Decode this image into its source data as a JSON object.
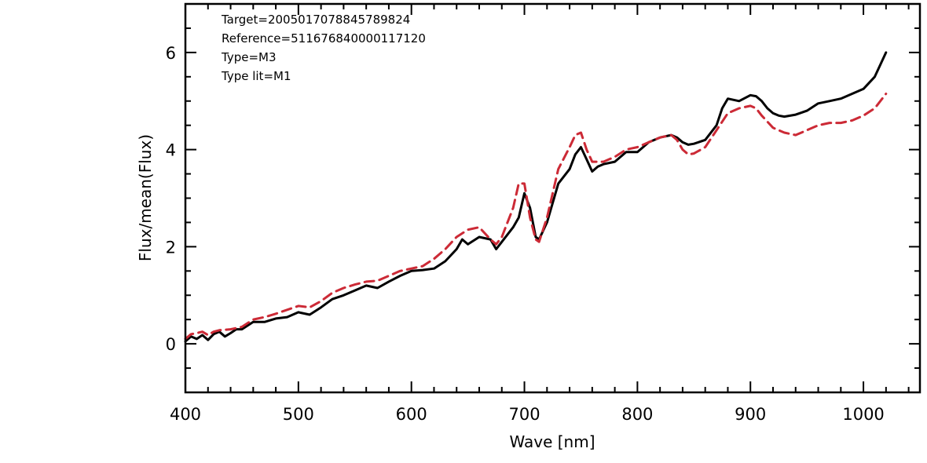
{
  "chart_data": {
    "type": "line",
    "xlabel": "Wave [nm]",
    "ylabel": "Flux/mean(Flux)",
    "xlim": [
      400,
      1050
    ],
    "ylim": [
      -1,
      7
    ],
    "xticks": [
      400,
      500,
      600,
      700,
      800,
      900,
      1000
    ],
    "yticks": [
      0,
      2,
      4,
      6
    ],
    "grid": false,
    "annotations": [
      "Target=2005017078845789824",
      "Reference=511676840000117120",
      "Type=M3",
      "Type lit=M1"
    ],
    "series": [
      {
        "color": "#000000",
        "style": "solid",
        "x": [
          400,
          405,
          410,
          415,
          420,
          425,
          430,
          435,
          440,
          445,
          450,
          460,
          470,
          480,
          490,
          500,
          510,
          520,
          530,
          540,
          550,
          560,
          570,
          580,
          590,
          600,
          610,
          620,
          630,
          640,
          645,
          650,
          660,
          670,
          675,
          680,
          690,
          695,
          700,
          705,
          710,
          713,
          720,
          730,
          740,
          745,
          750,
          755,
          760,
          765,
          770,
          780,
          790,
          800,
          810,
          820,
          830,
          835,
          840,
          845,
          850,
          860,
          870,
          875,
          880,
          890,
          900,
          905,
          910,
          915,
          920,
          925,
          930,
          940,
          950,
          960,
          970,
          980,
          990,
          1000,
          1010,
          1015,
          1020
        ],
        "y": [
          0.05,
          0.15,
          0.1,
          0.18,
          0.08,
          0.2,
          0.25,
          0.15,
          0.22,
          0.3,
          0.3,
          0.45,
          0.45,
          0.52,
          0.55,
          0.65,
          0.6,
          0.75,
          0.92,
          1.0,
          1.1,
          1.2,
          1.15,
          1.28,
          1.4,
          1.5,
          1.52,
          1.55,
          1.7,
          1.95,
          2.15,
          2.05,
          2.2,
          2.15,
          1.95,
          2.1,
          2.4,
          2.6,
          3.1,
          2.8,
          2.2,
          2.15,
          2.5,
          3.3,
          3.6,
          3.9,
          4.05,
          3.8,
          3.55,
          3.65,
          3.7,
          3.75,
          3.95,
          3.95,
          4.15,
          4.25,
          4.3,
          4.25,
          4.15,
          4.1,
          4.12,
          4.2,
          4.5,
          4.85,
          5.05,
          5.0,
          5.12,
          5.1,
          5.0,
          4.85,
          4.75,
          4.7,
          4.68,
          4.72,
          4.8,
          4.95,
          5.0,
          5.05,
          5.15,
          5.25,
          5.5,
          5.75,
          6.0
        ]
      },
      {
        "color": "#cc2a36",
        "style": "dashed",
        "x": [
          400,
          405,
          410,
          415,
          420,
          425,
          430,
          440,
          450,
          460,
          470,
          480,
          490,
          500,
          510,
          520,
          530,
          540,
          550,
          560,
          570,
          580,
          590,
          600,
          610,
          620,
          630,
          640,
          650,
          660,
          670,
          675,
          680,
          690,
          695,
          700,
          705,
          710,
          713,
          720,
          730,
          740,
          745,
          750,
          755,
          760,
          770,
          780,
          790,
          800,
          810,
          820,
          830,
          835,
          840,
          845,
          850,
          860,
          870,
          880,
          890,
          900,
          905,
          910,
          920,
          930,
          940,
          950,
          960,
          970,
          980,
          990,
          1000,
          1010,
          1020
        ],
        "y": [
          0.1,
          0.2,
          0.22,
          0.25,
          0.18,
          0.25,
          0.28,
          0.3,
          0.35,
          0.5,
          0.55,
          0.62,
          0.7,
          0.78,
          0.75,
          0.88,
          1.05,
          1.15,
          1.22,
          1.28,
          1.3,
          1.4,
          1.5,
          1.55,
          1.6,
          1.75,
          1.95,
          2.2,
          2.35,
          2.4,
          2.15,
          2.05,
          2.2,
          2.8,
          3.3,
          3.3,
          2.6,
          2.15,
          2.1,
          2.6,
          3.6,
          4.05,
          4.3,
          4.35,
          4.0,
          3.75,
          3.75,
          3.85,
          4.0,
          4.05,
          4.15,
          4.25,
          4.3,
          4.2,
          4.0,
          3.9,
          3.92,
          4.05,
          4.4,
          4.75,
          4.85,
          4.9,
          4.85,
          4.7,
          4.45,
          4.35,
          4.3,
          4.4,
          4.5,
          4.55,
          4.55,
          4.6,
          4.7,
          4.85,
          5.15
        ]
      }
    ]
  }
}
